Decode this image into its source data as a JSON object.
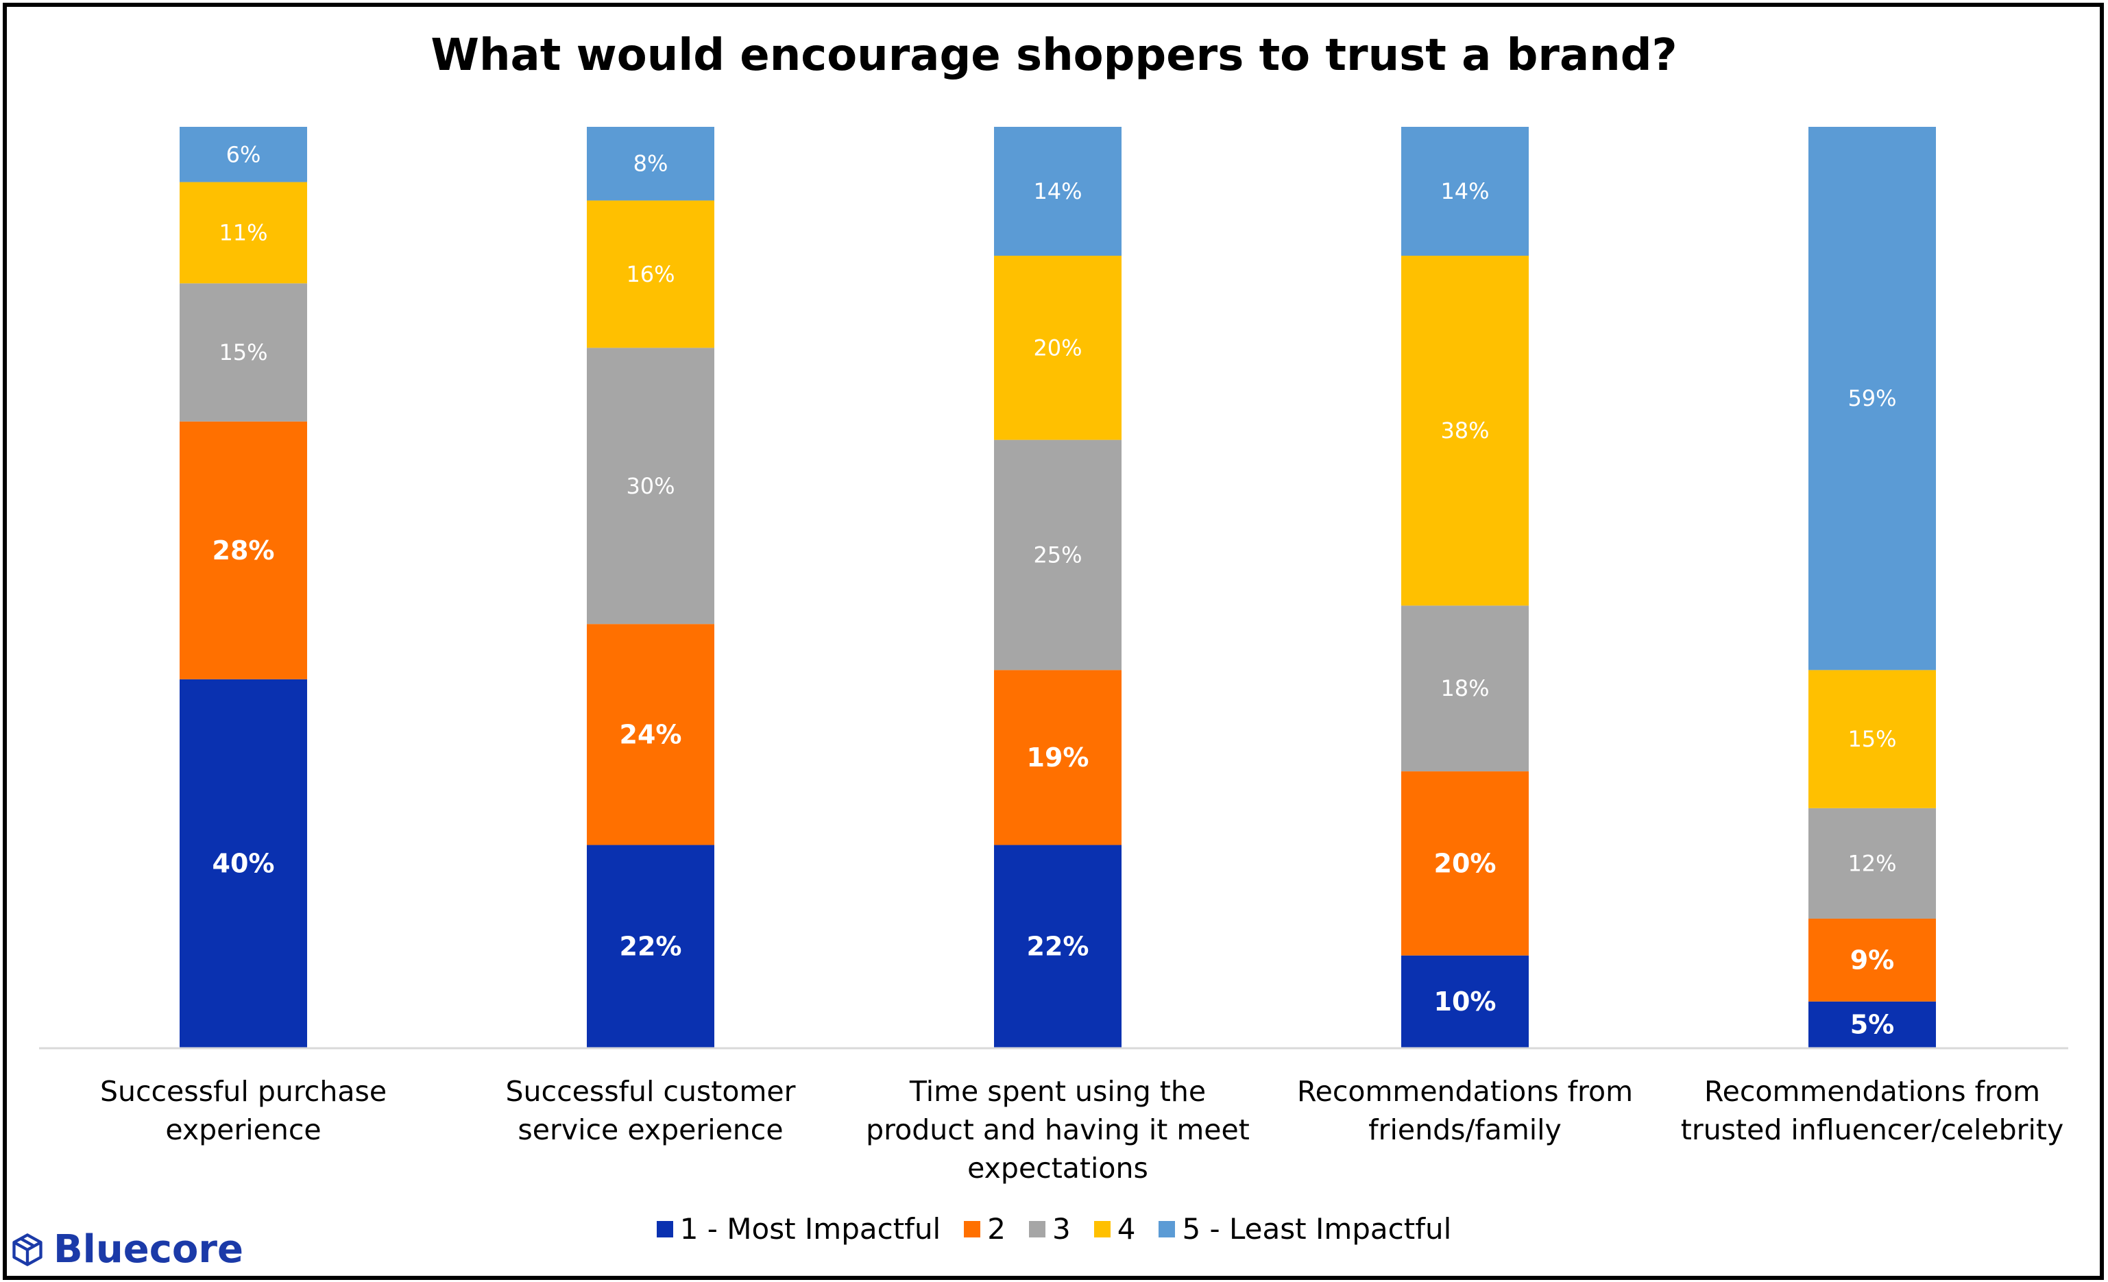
{
  "chart_data": {
    "type": "bar",
    "stacked": true,
    "title": "What would encourage shoppers to trust a brand?",
    "categories": [
      "Successful purchase\nexperience",
      "Successful customer\nservice experience",
      "Time spent using the\nproduct and having it meet\nexpectations",
      "Recommendations from\nfriends/family",
      "Recommendations from\ntrusted influencer/celebrity"
    ],
    "series": [
      {
        "name": "1 - Most Impactful",
        "color": "#0a31b0",
        "values": [
          40,
          22,
          22,
          10,
          5
        ]
      },
      {
        "name": "2",
        "color": "#ff7000",
        "values": [
          28,
          24,
          19,
          20,
          9
        ]
      },
      {
        "name": "3",
        "color": "#a6a6a6",
        "values": [
          15,
          30,
          25,
          18,
          12
        ]
      },
      {
        "name": "4",
        "color": "#ffc000",
        "values": [
          11,
          16,
          20,
          38,
          15
        ]
      },
      {
        "name": "5 - Least Impactful",
        "color": "#5b9bd5",
        "values": [
          6,
          8,
          14,
          14,
          59
        ]
      }
    ],
    "data_labels": [
      [
        "40%",
        "22%",
        "22%",
        "10%",
        "5%"
      ],
      [
        "28%",
        "24%",
        "19%",
        "20%",
        "9%"
      ],
      [
        "15%",
        "30%",
        "25%",
        "18%",
        "12%"
      ],
      [
        "11%",
        "16%",
        "20%",
        "38%",
        "15%"
      ],
      [
        "6%",
        "8%",
        "14%",
        "14%",
        "59%"
      ]
    ],
    "ylim": [
      0,
      100
    ],
    "xlabel": "",
    "ylabel": "",
    "grid": false,
    "legend_position": "bottom"
  },
  "brand": {
    "name": "Bluecore",
    "icon": "cube-icon",
    "color": "#1b3aa8"
  }
}
